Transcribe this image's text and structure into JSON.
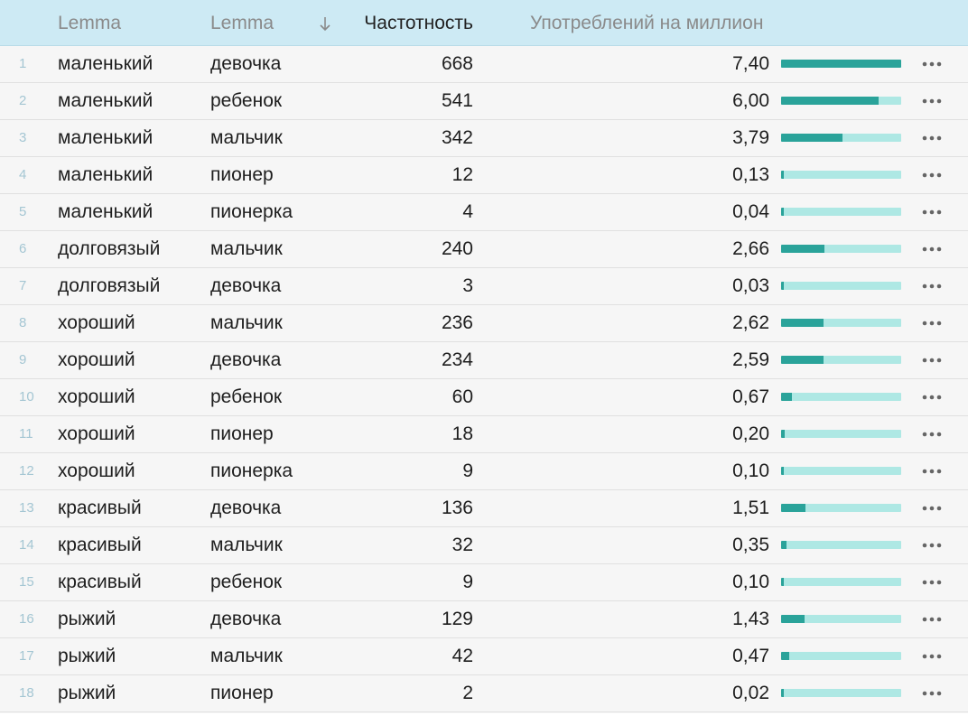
{
  "header": {
    "col_lemma_1": "Lemma",
    "col_lemma_2": "Lemma",
    "sort_icon": "arrow-down-icon",
    "col_frequency": "Частотность",
    "col_ipm": "Употреблений на миллион"
  },
  "colors": {
    "header_bg": "#cdeaf4",
    "bar_track": "#aee8e4",
    "bar_fill": "#2aa39a"
  },
  "rows": [
    {
      "n": "1",
      "w1": "маленький",
      "w2": "девочка",
      "freq": "668",
      "ipm": "7,40",
      "level": 1.0
    },
    {
      "n": "2",
      "w1": "маленький",
      "w2": "ребенок",
      "freq": "541",
      "ipm": "6,00",
      "level": 0.81
    },
    {
      "n": "3",
      "w1": "маленький",
      "w2": "мальчик",
      "freq": "342",
      "ipm": "3,79",
      "level": 0.512
    },
    {
      "n": "4",
      "w1": "маленький",
      "w2": "пионер",
      "freq": "12",
      "ipm": "0,13",
      "level": 0.018
    },
    {
      "n": "5",
      "w1": "маленький",
      "w2": "пионерка",
      "freq": "4",
      "ipm": "0,04",
      "level": 0.006
    },
    {
      "n": "6",
      "w1": "долговязый",
      "w2": "мальчик",
      "freq": "240",
      "ipm": "2,66",
      "level": 0.359
    },
    {
      "n": "7",
      "w1": "долговязый",
      "w2": "девочка",
      "freq": "3",
      "ipm": "0,03",
      "level": 0.004
    },
    {
      "n": "8",
      "w1": "хороший",
      "w2": "мальчик",
      "freq": "236",
      "ipm": "2,62",
      "level": 0.354
    },
    {
      "n": "9",
      "w1": "хороший",
      "w2": "девочка",
      "freq": "234",
      "ipm": "2,59",
      "level": 0.35
    },
    {
      "n": "10",
      "w1": "хороший",
      "w2": "ребенок",
      "freq": "60",
      "ipm": "0,67",
      "level": 0.09
    },
    {
      "n": "11",
      "w1": "хороший",
      "w2": "пионер",
      "freq": "18",
      "ipm": "0,20",
      "level": 0.027
    },
    {
      "n": "12",
      "w1": "хороший",
      "w2": "пионерка",
      "freq": "9",
      "ipm": "0,10",
      "level": 0.014
    },
    {
      "n": "13",
      "w1": "красивый",
      "w2": "девочка",
      "freq": "136",
      "ipm": "1,51",
      "level": 0.204
    },
    {
      "n": "14",
      "w1": "красивый",
      "w2": "мальчик",
      "freq": "32",
      "ipm": "0,35",
      "level": 0.047
    },
    {
      "n": "15",
      "w1": "красивый",
      "w2": "ребенок",
      "freq": "9",
      "ipm": "0,10",
      "level": 0.014
    },
    {
      "n": "16",
      "w1": "рыжий",
      "w2": "девочка",
      "freq": "129",
      "ipm": "1,43",
      "level": 0.193
    },
    {
      "n": "17",
      "w1": "рыжий",
      "w2": "мальчик",
      "freq": "42",
      "ipm": "0,47",
      "level": 0.064
    },
    {
      "n": "18",
      "w1": "рыжий",
      "w2": "пионер",
      "freq": "2",
      "ipm": "0,02",
      "level": 0.003
    }
  ]
}
